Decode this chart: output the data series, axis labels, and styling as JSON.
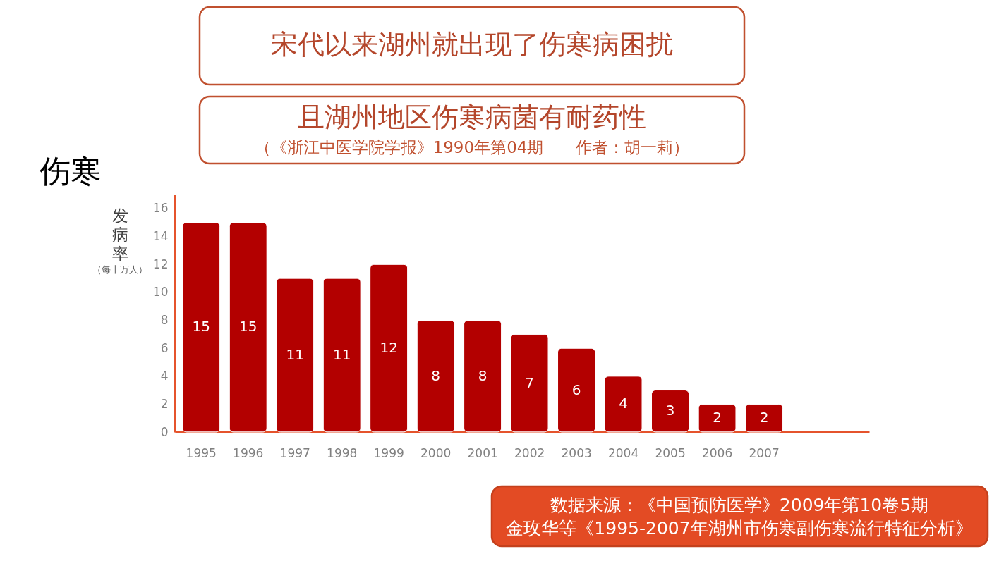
{
  "chart_data": {
    "type": "bar",
    "title": "宋代以来湖州就出现了伤寒病困扰",
    "subtitle": "且湖州地区伤寒病菌有耐药性",
    "ylabel": "发病率",
    "categories": [
      "1995",
      "1996",
      "1997",
      "1998",
      "1999",
      "2000",
      "2001",
      "2002",
      "2003",
      "2004",
      "2005",
      "2006",
      "2007"
    ],
    "values": [
      15,
      15,
      11,
      11,
      12,
      8,
      8,
      7,
      6,
      4,
      3,
      2,
      2
    ],
    "color": "#b30000",
    "data_labels": true,
    "ylim": [
      0,
      17
    ],
    "yticks": [
      0,
      2,
      4,
      6,
      8,
      10,
      12,
      14,
      16
    ],
    "grid": false,
    "annotations": [
      "（《浙江中医学院学报》1990年第04期　　作者：胡一莉）",
      "伤寒",
      "（每十万人）",
      "数据来源：《中国预防医学》2009年第10卷5期",
      "金玫华等《1995-2007年湖州市伤寒副伤寒流行特征分析》"
    ]
  }
}
